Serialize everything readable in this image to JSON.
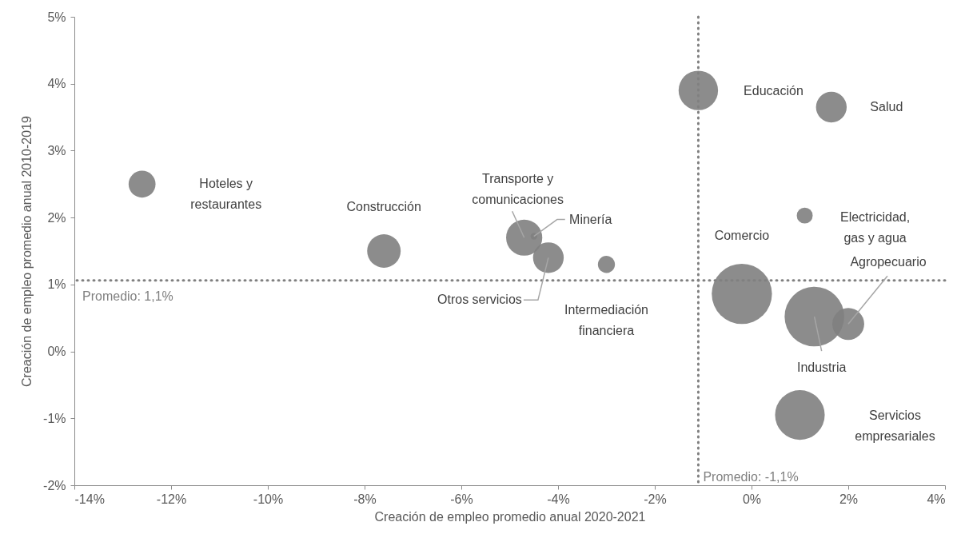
{
  "chart_data": {
    "type": "bubble",
    "xlabel": "Creación de empleo promedio anual 2020-2021",
    "ylabel": "Creación de empleo promedio anual 2010-2019",
    "series": [
      {
        "color": "#808080",
        "x": [
          -12.6,
          -7.6,
          -4.7,
          -4.5,
          -4.2,
          -3.0,
          -1.1,
          1.65,
          1.1,
          -0.2,
          1.3,
          2.0,
          1.0
        ],
        "values": [
          2.5,
          1.5,
          1.7,
          1.72,
          1.4,
          1.3,
          3.9,
          3.65,
          2.03,
          0.86,
          0.52,
          0.41,
          -0.95
        ],
        "sizes": [
          0.2,
          0.31,
          0.36,
          0.012,
          0.26,
          0.08,
          0.43,
          0.26,
          0.07,
          1,
          0.98,
          0.28,
          0.68
        ]
      }
    ],
    "xlim": [
      -14,
      4
    ],
    "xticks": [
      {
        "value": -14,
        "label": "-14%"
      },
      {
        "value": -12,
        "label": "-12%"
      },
      {
        "value": -10,
        "label": "-10%"
      },
      {
        "value": -8,
        "label": "-8%"
      },
      {
        "value": -6,
        "label": "-6%"
      },
      {
        "value": -4,
        "label": "-4%"
      },
      {
        "value": -2,
        "label": "-2%"
      },
      {
        "value": 0,
        "label": "0%"
      },
      {
        "value": 2,
        "label": "2%"
      },
      {
        "value": 4,
        "label": "4%"
      }
    ],
    "ylim": [
      -2,
      5
    ],
    "yticks": [
      {
        "value": -2,
        "label": "-2%"
      },
      {
        "value": -1,
        "label": "-1%"
      },
      {
        "value": 0,
        "label": "0%"
      },
      {
        "value": 1,
        "label": "1%"
      },
      {
        "value": 2,
        "label": "2%"
      },
      {
        "value": 3,
        "label": "3%"
      },
      {
        "value": 4,
        "label": "4%"
      },
      {
        "value": 5,
        "label": "5%"
      }
    ],
    "ref_lines": [
      {
        "axis": "x",
        "value": -1.1,
        "label": "Promedio: -1,1%",
        "color": "#808080",
        "line_style": "dotted"
      },
      {
        "axis": "y",
        "value": 1.06,
        "label": "Promedio: 1,1%",
        "color": "#808080",
        "line_style": "dotted"
      }
    ],
    "annotations": [
      "Hoteles y restaurantes",
      "Construcción",
      {
        "text": "Transporte y comunicaciones",
        "x": -4.7,
        "y": 1.7
      },
      {
        "text": "Minería",
        "x": -4.5,
        "y": 1.72
      },
      {
        "text": "Otros servicios",
        "x": -4.2,
        "y": 1.4
      },
      "Intermediación financiera",
      "Educación",
      "Salud",
      "Electricidad, gas y agua",
      "Comercio",
      {
        "text": "Industria",
        "x": 1.3,
        "y": 0.52
      },
      {
        "text": "Agropecuario",
        "x": 2.0,
        "y": 0.41
      },
      "Servicios empresariales"
    ]
  }
}
